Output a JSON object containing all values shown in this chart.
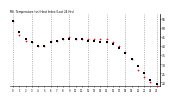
{
  "title": "Mil. Temperature (vs) Heat Index (Last 24 Hrs)",
  "bg_color": "#ffffff",
  "plot_bg": "#ffffff",
  "grid_color": "#888888",
  "temp_color": "#000000",
  "heat_color": "#ff0000",
  "ylim": [
    18,
    58
  ],
  "ytick_labels": [
    "55",
    "50",
    "45",
    "40",
    "35",
    "30",
    "25",
    "20"
  ],
  "ytick_vals": [
    55,
    50,
    45,
    40,
    35,
    30,
    25,
    20
  ],
  "temp_values": [
    54,
    48,
    44,
    42,
    40,
    40,
    42,
    43,
    44,
    44,
    44,
    44,
    43,
    43,
    42,
    42,
    41,
    39,
    36,
    33,
    29,
    25,
    21,
    19
  ],
  "heat_values": [
    54,
    46,
    43,
    42,
    40,
    40,
    43,
    43,
    44,
    45,
    44,
    44,
    44,
    44,
    44,
    44,
    42,
    40,
    37,
    33,
    27,
    23,
    20,
    18
  ],
  "n_points": 24,
  "vgrid_x": [
    0,
    3,
    6,
    9,
    12,
    15,
    18,
    21,
    23
  ]
}
